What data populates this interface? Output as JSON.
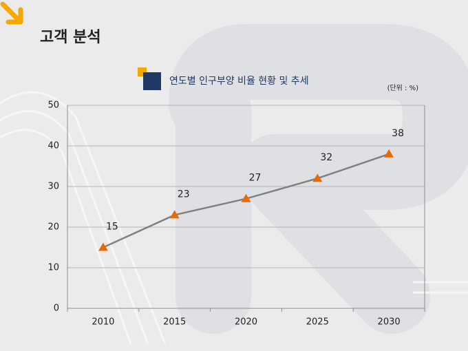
{
  "header": {
    "title": "고객 분석"
  },
  "chart_data": {
    "type": "line",
    "title": "연도별 인구부양 비율 현황 및 추세",
    "unit_label": "(단위 : %)",
    "categories": [
      "2010",
      "2015",
      "2020",
      "2025",
      "2030"
    ],
    "values": [
      15,
      23,
      27,
      32,
      38
    ],
    "color": "#808080",
    "marker_color": "#e36c09",
    "ylim": [
      0,
      50
    ],
    "yticks": [
      0,
      10,
      20,
      30,
      40,
      50
    ],
    "grid": true
  }
}
